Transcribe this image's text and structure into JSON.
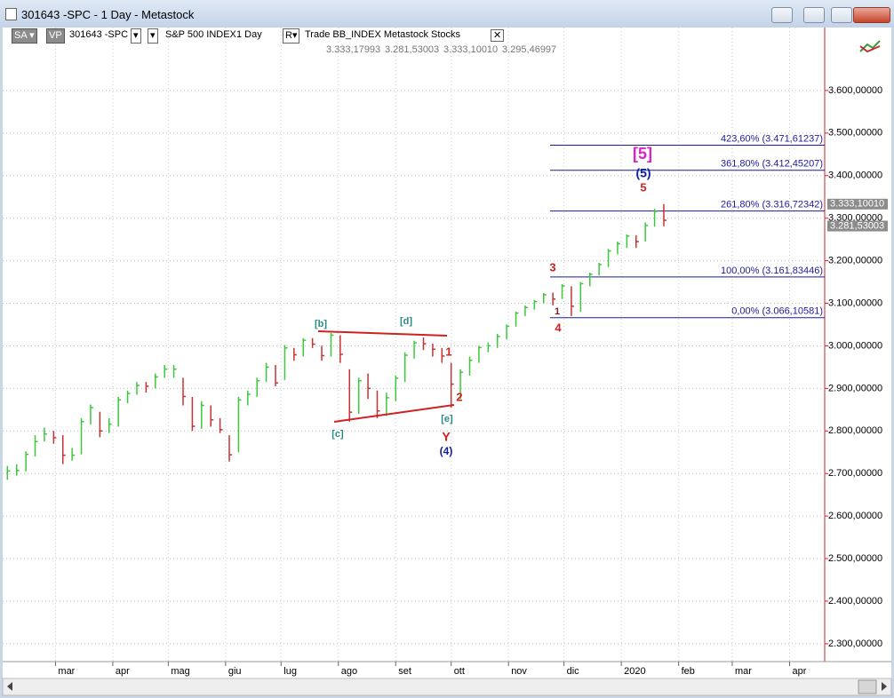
{
  "window": {
    "title": "301643 -SPC - 1 Day - Metastock"
  },
  "toolbar": {
    "sa": "SA",
    "vp": "VP",
    "symbol": "301643 -SPC",
    "name": "S&P 500 INDEX",
    "period": "1 Day",
    "r": "R",
    "tags": "Trade  BB_INDEX  Metastock  Stocks",
    "readout": [
      "3.333,17993",
      "3.281,53003",
      "3.333,10010",
      "3.295,46997"
    ]
  },
  "chart_data": {
    "type": "ohlc",
    "x": [
      33,
      38,
      43,
      48,
      53,
      58,
      63,
      68,
      73,
      78,
      83,
      88,
      93,
      98,
      103,
      108,
      113,
      118,
      123,
      128,
      133,
      138,
      143,
      148,
      153,
      158,
      163,
      168,
      173,
      178,
      183,
      188,
      193,
      198,
      203,
      208,
      213,
      218,
      223,
      228,
      233,
      238,
      243,
      248,
      253,
      258,
      263,
      268,
      273,
      278,
      283,
      288,
      293,
      298,
      303,
      308,
      313,
      318,
      323,
      328,
      333,
      338,
      343,
      348,
      353,
      358,
      363,
      368,
      373,
      378,
      383,
      388
    ],
    "high": [
      2718,
      2722,
      2752,
      2790,
      2808,
      2800,
      2790,
      2760,
      2830,
      2862,
      2845,
      2830,
      2880,
      2895,
      2915,
      2915,
      2935,
      2955,
      2955,
      2925,
      2880,
      2870,
      2860,
      2830,
      2790,
      2880,
      2895,
      2925,
      2960,
      2955,
      3002,
      2995,
      3018,
      3018,
      3000,
      3030,
      3025,
      2945,
      2925,
      2935,
      2895,
      2890,
      2930,
      2985,
      3012,
      3020,
      3005,
      2995,
      2960,
      2945,
      2975,
      3000,
      3008,
      3028,
      3050,
      3080,
      3095,
      3108,
      3124,
      3125,
      3145,
      3140,
      3150,
      3172,
      3195,
      3228,
      3245,
      3262,
      3260,
      3290,
      3322,
      3333
    ],
    "low": [
      2685,
      2695,
      2705,
      2740,
      2775,
      2770,
      2722,
      2730,
      2745,
      2815,
      2785,
      2795,
      2810,
      2865,
      2885,
      2890,
      2900,
      2925,
      2925,
      2860,
      2800,
      2805,
      2810,
      2795,
      2728,
      2750,
      2860,
      2880,
      2915,
      2905,
      2920,
      2965,
      2975,
      2995,
      2965,
      2975,
      2960,
      2822,
      2840,
      2875,
      2830,
      2835,
      2870,
      2915,
      2970,
      2990,
      2975,
      2960,
      2855,
      2875,
      2930,
      2960,
      2985,
      2995,
      3015,
      3045,
      3070,
      3085,
      3100,
      3095,
      3110,
      3070,
      3080,
      3140,
      3165,
      3185,
      3215,
      3230,
      3230,
      3245,
      3280,
      3281
    ],
    "close": [
      2706,
      2707,
      2745,
      2775,
      2793,
      2784,
      2743,
      2743,
      2822,
      2855,
      2800,
      2816,
      2873,
      2888,
      2907,
      2905,
      2927,
      2945,
      2945,
      2881,
      2811,
      2860,
      2826,
      2803,
      2744,
      2873,
      2886,
      2918,
      2950,
      2913,
      2995,
      2979,
      3013,
      3004,
      2977,
      3025,
      2980,
      2844,
      2918,
      2900,
      2847,
      2878,
      2924,
      2978,
      3007,
      3005,
      2992,
      2976,
      2910,
      2938,
      2966,
      2996,
      3000,
      3022,
      3046,
      3077,
      3090,
      3104,
      3120,
      3110,
      3141,
      3093,
      3146,
      3168,
      3191,
      3223,
      3240,
      3258,
      3245,
      3283,
      3316,
      3295
    ],
    "up_color": "#3cc83c",
    "down_color": "#c83232",
    "xlim": [
      29,
      475
    ],
    "xticks": [
      {
        "value": 59,
        "label": "mar"
      },
      {
        "value": 90,
        "label": "apr"
      },
      {
        "value": 120,
        "label": "mag"
      },
      {
        "value": 151,
        "label": "giu"
      },
      {
        "value": 181,
        "label": "lug"
      },
      {
        "value": 212,
        "label": "ago"
      },
      {
        "value": 243,
        "label": "set"
      },
      {
        "value": 273,
        "label": "ott"
      },
      {
        "value": 304,
        "label": "nov"
      },
      {
        "value": 334,
        "label": "dic"
      },
      {
        "value": 365,
        "label": "2020"
      },
      {
        "value": 396,
        "label": "feb"
      },
      {
        "value": 425,
        "label": "mar"
      },
      {
        "value": 456,
        "label": "apr"
      }
    ],
    "ylim": [
      2258,
      3748
    ],
    "yticks": [
      {
        "value": 2300,
        "label": "2.300,00000"
      },
      {
        "value": 2400,
        "label": "2.400,00000"
      },
      {
        "value": 2500,
        "label": "2.500,00000"
      },
      {
        "value": 2600,
        "label": "2.600,00000"
      },
      {
        "value": 2700,
        "label": "2.700,00000"
      },
      {
        "value": 2800,
        "label": "2.800,00000"
      },
      {
        "value": 2900,
        "label": "2.900,00000"
      },
      {
        "value": 3000,
        "label": "3.000,00000"
      },
      {
        "value": 3100,
        "label": "3.100,00000"
      },
      {
        "value": 3200,
        "label": "3.200,00000"
      },
      {
        "value": 3300,
        "label": "3.300,00000"
      },
      {
        "value": 3400,
        "label": "3.400,00000"
      },
      {
        "value": 3500,
        "label": "3.500,00000"
      },
      {
        "value": 3600,
        "label": "3.600,00000"
      }
    ],
    "grid": true,
    "levels": [
      {
        "value": 3471.61237,
        "label": "423,60% (3.471,61237)"
      },
      {
        "value": 3412.45207,
        "label": "361,80% (3.412,45207)"
      },
      {
        "value": 3316.72342,
        "label": "261,80% (3.316,72342)"
      },
      {
        "value": 3161.83446,
        "label": "100,00% (3.161,83446)"
      },
      {
        "value": 3066.10581,
        "label": "0,00% (3.066,10581)"
      }
    ],
    "level_color": "#1c1c9c",
    "price_tags": [
      {
        "value": 3333.1001,
        "label": "3.333,10010"
      },
      {
        "value": 3281.53003,
        "label": "3.281,53003"
      }
    ],
    "annotations": [
      {
        "text": "[5]",
        "color": "#e020c8"
      },
      {
        "text": "(5)",
        "color": "#1020a0"
      },
      {
        "text": "5",
        "color": "#d02020"
      },
      {
        "text": "3",
        "color": "#d02020"
      },
      {
        "text": "1",
        "color": "#802020"
      },
      {
        "text": "4",
        "color": "#d02020"
      },
      {
        "text": "[b]",
        "color": "#2a8a8a"
      },
      {
        "text": "[d]",
        "color": "#2a8a8a"
      },
      {
        "text": "[c]",
        "color": "#2a8a8a"
      },
      {
        "text": "[e]",
        "color": "#2a8a8a"
      },
      {
        "text": "1",
        "color": "#d02020"
      },
      {
        "text": "2",
        "color": "#d02020"
      },
      {
        "text": "Y",
        "color": "#d02020"
      },
      {
        "text": "(4)",
        "color": "#1020a0"
      }
    ]
  }
}
